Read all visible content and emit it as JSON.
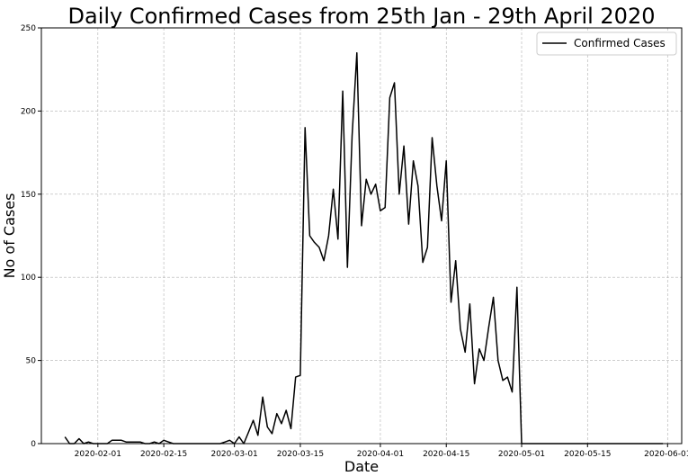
{
  "chart_data": {
    "type": "line",
    "title": "Daily Confirmed Cases from 25th Jan - 29th April 2020",
    "xlabel": "Date",
    "ylabel": "No of Cases",
    "xlim": [
      "2020-01-20",
      "2020-06-04"
    ],
    "ylim": [
      0,
      250
    ],
    "grid": true,
    "legend_position": "top-right",
    "x_ticks": [
      "2020-02-01",
      "2020-02-15",
      "2020-03-01",
      "2020-03-15",
      "2020-04-01",
      "2020-04-15",
      "2020-05-01",
      "2020-05-15",
      "2020-06-01"
    ],
    "y_ticks": [
      0,
      50,
      100,
      150,
      200,
      250
    ],
    "series": [
      {
        "name": "Confirmed Cases",
        "color": "#000000",
        "x": [
          "2020-01-25",
          "2020-01-26",
          "2020-01-27",
          "2020-01-28",
          "2020-01-29",
          "2020-01-30",
          "2020-01-31",
          "2020-02-01",
          "2020-02-02",
          "2020-02-03",
          "2020-02-04",
          "2020-02-05",
          "2020-02-06",
          "2020-02-07",
          "2020-02-08",
          "2020-02-09",
          "2020-02-10",
          "2020-02-11",
          "2020-02-12",
          "2020-02-13",
          "2020-02-14",
          "2020-02-15",
          "2020-02-16",
          "2020-02-17",
          "2020-02-18",
          "2020-02-19",
          "2020-02-20",
          "2020-02-21",
          "2020-02-22",
          "2020-02-23",
          "2020-02-24",
          "2020-02-25",
          "2020-02-26",
          "2020-02-27",
          "2020-02-28",
          "2020-02-29",
          "2020-03-01",
          "2020-03-02",
          "2020-03-03",
          "2020-03-04",
          "2020-03-05",
          "2020-03-06",
          "2020-03-07",
          "2020-03-08",
          "2020-03-09",
          "2020-03-10",
          "2020-03-11",
          "2020-03-12",
          "2020-03-13",
          "2020-03-14",
          "2020-03-15",
          "2020-03-16",
          "2020-03-17",
          "2020-03-18",
          "2020-03-19",
          "2020-03-20",
          "2020-03-21",
          "2020-03-22",
          "2020-03-23",
          "2020-03-24",
          "2020-03-25",
          "2020-03-26",
          "2020-03-27",
          "2020-03-28",
          "2020-03-29",
          "2020-03-30",
          "2020-03-31",
          "2020-04-01",
          "2020-04-02",
          "2020-04-03",
          "2020-04-04",
          "2020-04-05",
          "2020-04-06",
          "2020-04-07",
          "2020-04-08",
          "2020-04-09",
          "2020-04-10",
          "2020-04-11",
          "2020-04-12",
          "2020-04-13",
          "2020-04-14",
          "2020-04-15",
          "2020-04-16",
          "2020-04-17",
          "2020-04-18",
          "2020-04-19",
          "2020-04-20",
          "2020-04-21",
          "2020-04-22",
          "2020-04-23",
          "2020-04-24",
          "2020-04-25",
          "2020-04-26",
          "2020-04-27",
          "2020-04-28",
          "2020-04-29",
          "2020-04-30",
          "2020-05-01",
          "2020-05-31"
        ],
        "values": [
          4,
          0,
          0,
          3,
          0,
          1,
          0,
          0,
          0,
          0,
          2,
          2,
          2,
          1,
          1,
          1,
          1,
          0,
          0,
          1,
          0,
          2,
          1,
          0,
          0,
          0,
          0,
          0,
          0,
          0,
          0,
          0,
          0,
          0,
          1,
          2,
          0,
          4,
          0,
          7,
          14,
          5,
          28,
          10,
          6,
          18,
          12,
          20,
          9,
          40,
          41,
          190,
          125,
          121,
          118,
          110,
          125,
          153,
          123,
          212,
          106,
          185,
          235,
          131,
          159,
          150,
          156,
          140,
          142,
          208,
          217,
          150,
          179,
          132,
          170,
          155,
          109,
          118,
          184,
          155,
          134,
          170,
          85,
          110,
          69,
          55,
          84,
          36,
          57,
          50,
          70,
          88,
          50,
          38,
          40,
          31,
          94,
          0,
          0
        ]
      }
    ]
  }
}
